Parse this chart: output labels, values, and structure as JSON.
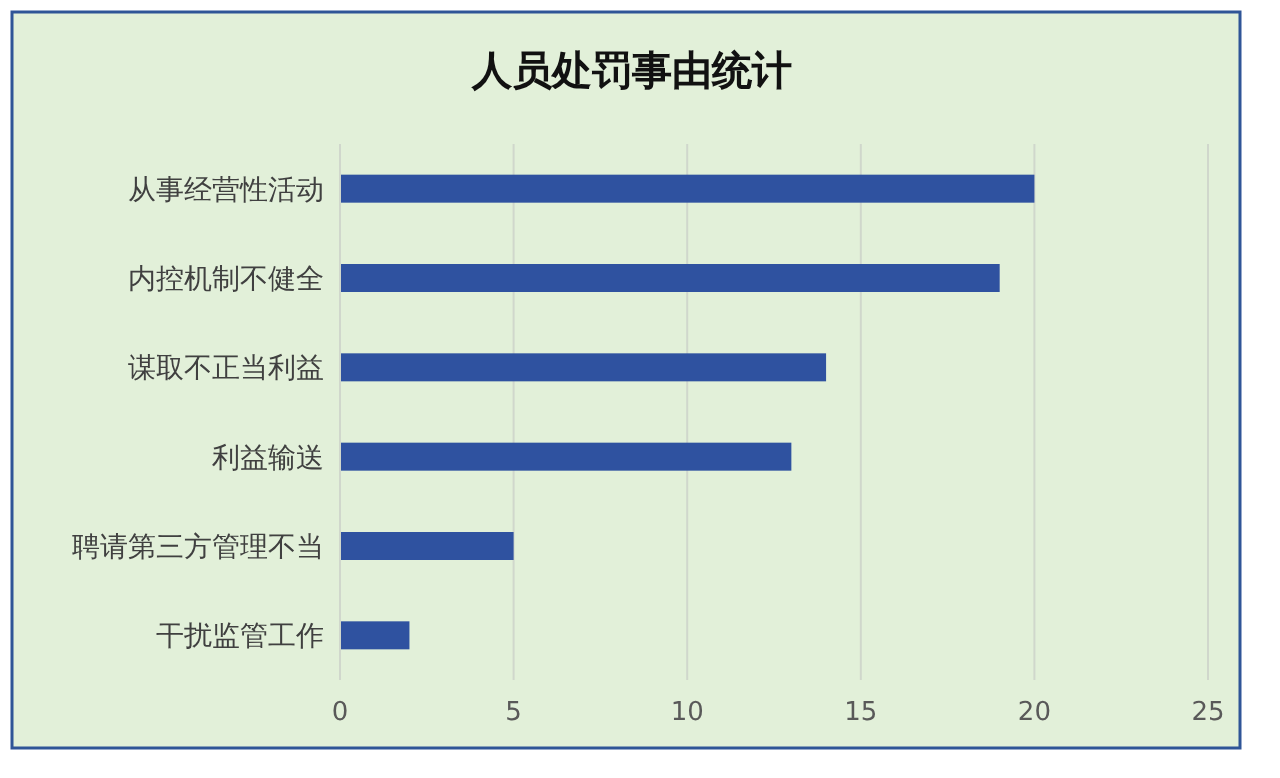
{
  "chart_data": {
    "type": "bar",
    "orientation": "horizontal",
    "title": "人员处罚事由统计",
    "categories": [
      "从事经营性活动",
      "内控机制不健全",
      "谋取不正当利益",
      "利益输送",
      "聘请第三方管理不当",
      "干扰监管工作"
    ],
    "values": [
      20,
      19,
      14,
      13,
      5,
      2
    ],
    "color": "#2f52a0",
    "xlim": [
      0,
      25
    ],
    "xticks": [
      0,
      5,
      10,
      15,
      20,
      25
    ],
    "grid": "x"
  }
}
